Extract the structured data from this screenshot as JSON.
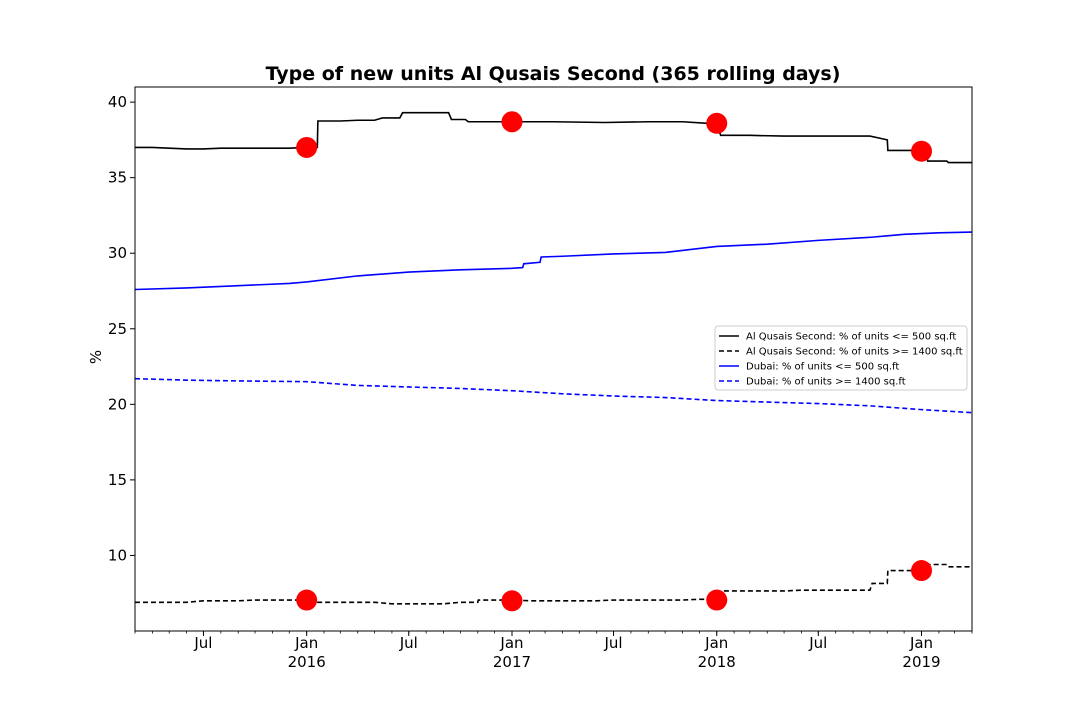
{
  "chart_data": {
    "type": "line",
    "title": "Type of new units Al Qusais Second (365 rolling days)",
    "xlabel": "",
    "ylabel": "%",
    "xlim": [
      "2015-03-01",
      "2019-04-01"
    ],
    "ylim": [
      5,
      41
    ],
    "yticks": [
      10,
      15,
      20,
      25,
      30,
      35,
      40
    ],
    "xticks": [
      {
        "date": "2015-07-01",
        "label": "Jul",
        "year": ""
      },
      {
        "date": "2016-01-01",
        "label": "Jan",
        "year": "2016"
      },
      {
        "date": "2016-07-01",
        "label": "Jul",
        "year": ""
      },
      {
        "date": "2017-01-01",
        "label": "Jan",
        "year": "2017"
      },
      {
        "date": "2017-07-01",
        "label": "Jul",
        "year": ""
      },
      {
        "date": "2018-01-01",
        "label": "Jan",
        "year": "2018"
      },
      {
        "date": "2018-07-01",
        "label": "Jul",
        "year": ""
      },
      {
        "date": "2019-01-01",
        "label": "Jan",
        "year": "2019"
      }
    ],
    "grid": false,
    "legend_position": "center-right",
    "series": [
      {
        "name": "Al Qusais Second: % of units <= 500 sq.ft",
        "color": "#000000",
        "style": "solid",
        "step": true,
        "points": [
          [
            "2015-03-01",
            37.0
          ],
          [
            "2015-04-01",
            37.0
          ],
          [
            "2015-05-01",
            36.95
          ],
          [
            "2015-06-01",
            36.9
          ],
          [
            "2015-07-01",
            36.9
          ],
          [
            "2015-08-01",
            36.95
          ],
          [
            "2015-10-01",
            36.95
          ],
          [
            "2015-12-01",
            36.95
          ],
          [
            "2016-01-01",
            37.0
          ],
          [
            "2016-01-20",
            37.0
          ],
          [
            "2016-01-21",
            38.75
          ],
          [
            "2016-03-01",
            38.75
          ],
          [
            "2016-04-01",
            38.8
          ],
          [
            "2016-05-01",
            38.8
          ],
          [
            "2016-05-15",
            38.95
          ],
          [
            "2016-06-15",
            38.95
          ],
          [
            "2016-06-20",
            39.3
          ],
          [
            "2016-09-10",
            39.3
          ],
          [
            "2016-09-15",
            38.85
          ],
          [
            "2016-10-10",
            38.85
          ],
          [
            "2016-10-15",
            38.7
          ],
          [
            "2017-01-01",
            38.7
          ],
          [
            "2017-02-01",
            38.7
          ],
          [
            "2017-03-15",
            38.7
          ],
          [
            "2017-06-15",
            38.65
          ],
          [
            "2017-09-01",
            38.7
          ],
          [
            "2017-11-01",
            38.7
          ],
          [
            "2017-12-15",
            38.6
          ],
          [
            "2018-01-01",
            38.55
          ],
          [
            "2018-01-08",
            37.8
          ],
          [
            "2018-03-01",
            37.8
          ],
          [
            "2018-05-01",
            37.75
          ],
          [
            "2018-08-01",
            37.75
          ],
          [
            "2018-10-01",
            37.75
          ],
          [
            "2018-10-20",
            37.6
          ],
          [
            "2018-11-01",
            37.5
          ],
          [
            "2018-11-02",
            36.8
          ],
          [
            "2018-12-15",
            36.8
          ],
          [
            "2019-01-01",
            36.75
          ],
          [
            "2019-01-10",
            36.75
          ],
          [
            "2019-01-12",
            36.1
          ],
          [
            "2019-02-15",
            36.1
          ],
          [
            "2019-02-18",
            36.0
          ],
          [
            "2019-04-01",
            36.0
          ]
        ]
      },
      {
        "name": "Al Qusais Second: % of units >= 1400 sq.ft",
        "color": "#000000",
        "style": "dashed",
        "step": true,
        "points": [
          [
            "2015-03-01",
            6.9
          ],
          [
            "2015-06-01",
            6.9
          ],
          [
            "2015-07-01",
            7.0
          ],
          [
            "2015-09-01",
            7.0
          ],
          [
            "2015-10-01",
            7.05
          ],
          [
            "2016-01-01",
            7.05
          ],
          [
            "2016-01-20",
            7.05
          ],
          [
            "2016-01-21",
            6.9
          ],
          [
            "2016-05-01",
            6.9
          ],
          [
            "2016-06-01",
            6.8
          ],
          [
            "2016-09-01",
            6.8
          ],
          [
            "2016-10-01",
            6.9
          ],
          [
            "2016-11-01",
            6.9
          ],
          [
            "2016-11-02",
            7.05
          ],
          [
            "2017-01-01",
            7.05
          ],
          [
            "2017-02-01",
            7.0
          ],
          [
            "2017-06-01",
            7.0
          ],
          [
            "2017-07-01",
            7.05
          ],
          [
            "2017-11-01",
            7.05
          ],
          [
            "2017-12-01",
            7.1
          ],
          [
            "2018-01-08",
            7.1
          ],
          [
            "2018-01-10",
            7.65
          ],
          [
            "2018-05-01",
            7.65
          ],
          [
            "2018-06-01",
            7.7
          ],
          [
            "2018-09-01",
            7.7
          ],
          [
            "2018-10-01",
            7.7
          ],
          [
            "2018-10-05",
            8.15
          ],
          [
            "2018-11-01",
            8.15
          ],
          [
            "2018-11-02",
            9.0
          ],
          [
            "2019-01-01",
            9.0
          ],
          [
            "2019-01-10",
            9.0
          ],
          [
            "2019-01-12",
            9.4
          ],
          [
            "2019-02-15",
            9.4
          ],
          [
            "2019-02-18",
            9.25
          ],
          [
            "2019-04-01",
            9.25
          ]
        ]
      },
      {
        "name": "Dubai: % of units <= 500 sq.ft",
        "color": "#0000ff",
        "style": "solid",
        "step": false,
        "points": [
          [
            "2015-03-01",
            27.6
          ],
          [
            "2015-06-01",
            27.7
          ],
          [
            "2015-09-01",
            27.85
          ],
          [
            "2015-12-01",
            28.0
          ],
          [
            "2016-01-01",
            28.1
          ],
          [
            "2016-04-01",
            28.5
          ],
          [
            "2016-07-01",
            28.75
          ],
          [
            "2016-10-01",
            28.9
          ],
          [
            "2017-01-01",
            29.0
          ],
          [
            "2017-01-20",
            29.05
          ],
          [
            "2017-01-22",
            29.3
          ],
          [
            "2017-02-20",
            29.4
          ],
          [
            "2017-02-22",
            29.75
          ],
          [
            "2017-04-01",
            29.8
          ],
          [
            "2017-07-01",
            29.95
          ],
          [
            "2017-10-01",
            30.05
          ],
          [
            "2018-01-01",
            30.45
          ],
          [
            "2018-04-01",
            30.6
          ],
          [
            "2018-07-01",
            30.85
          ],
          [
            "2018-10-01",
            31.05
          ],
          [
            "2018-12-01",
            31.25
          ],
          [
            "2019-02-01",
            31.35
          ],
          [
            "2019-04-01",
            31.4
          ]
        ]
      },
      {
        "name": "Dubai: % of units >= 1400 sq.ft",
        "color": "#0000ff",
        "style": "dashed",
        "step": false,
        "points": [
          [
            "2015-03-01",
            21.7
          ],
          [
            "2015-06-01",
            21.6
          ],
          [
            "2015-09-01",
            21.55
          ],
          [
            "2016-01-01",
            21.5
          ],
          [
            "2016-04-01",
            21.25
          ],
          [
            "2016-07-01",
            21.15
          ],
          [
            "2016-10-01",
            21.05
          ],
          [
            "2017-01-01",
            20.9
          ],
          [
            "2017-04-01",
            20.7
          ],
          [
            "2017-07-01",
            20.55
          ],
          [
            "2017-10-01",
            20.45
          ],
          [
            "2018-01-01",
            20.25
          ],
          [
            "2018-04-01",
            20.15
          ],
          [
            "2018-07-01",
            20.05
          ],
          [
            "2018-10-01",
            19.9
          ],
          [
            "2019-01-01",
            19.65
          ],
          [
            "2019-04-01",
            19.45
          ]
        ]
      }
    ],
    "markers": [
      {
        "date": "2016-01-01",
        "value": 37.0,
        "color": "#ff0000"
      },
      {
        "date": "2017-01-01",
        "value": 38.7,
        "color": "#ff0000"
      },
      {
        "date": "2018-01-01",
        "value": 38.6,
        "color": "#ff0000"
      },
      {
        "date": "2019-01-01",
        "value": 36.75,
        "color": "#ff0000"
      },
      {
        "date": "2016-01-01",
        "value": 7.05,
        "color": "#ff0000"
      },
      {
        "date": "2017-01-01",
        "value": 7.0,
        "color": "#ff0000"
      },
      {
        "date": "2018-01-01",
        "value": 7.05,
        "color": "#ff0000"
      },
      {
        "date": "2019-01-01",
        "value": 9.0,
        "color": "#ff0000"
      }
    ]
  }
}
